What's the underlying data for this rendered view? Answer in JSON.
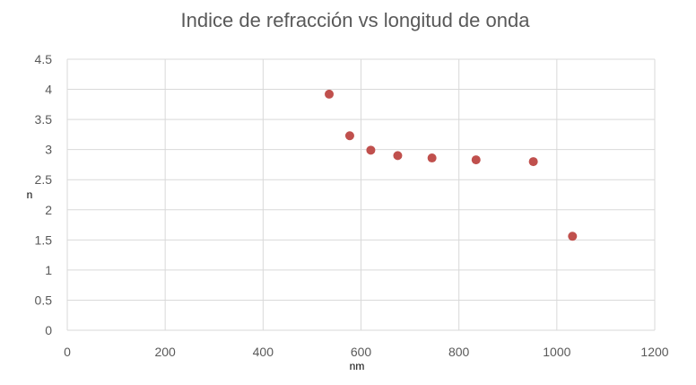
{
  "chart_data": {
    "type": "scatter",
    "title": "Indice de refracción vs longitud de onda",
    "xlabel": "nm",
    "ylabel": "n",
    "xlim": [
      0,
      1200
    ],
    "ylim": [
      0,
      4.5
    ],
    "x_ticks": [
      0,
      200,
      400,
      600,
      800,
      1000,
      1200
    ],
    "y_ticks": [
      0,
      0.5,
      1,
      1.5,
      2,
      2.5,
      3,
      3.5,
      4,
      4.5
    ],
    "x_tick_labels": [
      "0",
      "200",
      "400",
      "600",
      "800",
      "1000",
      "1200"
    ],
    "y_tick_labels": [
      "0",
      "0.5",
      "1",
      "1.5",
      "2",
      "2.5",
      "3",
      "3.5",
      "4",
      "4.5"
    ],
    "grid": true,
    "legend": "none",
    "marker_color": "#c0504d",
    "points": [
      {
        "x": 535,
        "y": 3.92
      },
      {
        "x": 577,
        "y": 3.23
      },
      {
        "x": 620,
        "y": 2.99
      },
      {
        "x": 675,
        "y": 2.9
      },
      {
        "x": 745,
        "y": 2.86
      },
      {
        "x": 835,
        "y": 2.83
      },
      {
        "x": 952,
        "y": 2.8
      },
      {
        "x": 1032,
        "y": 1.56
      }
    ]
  }
}
